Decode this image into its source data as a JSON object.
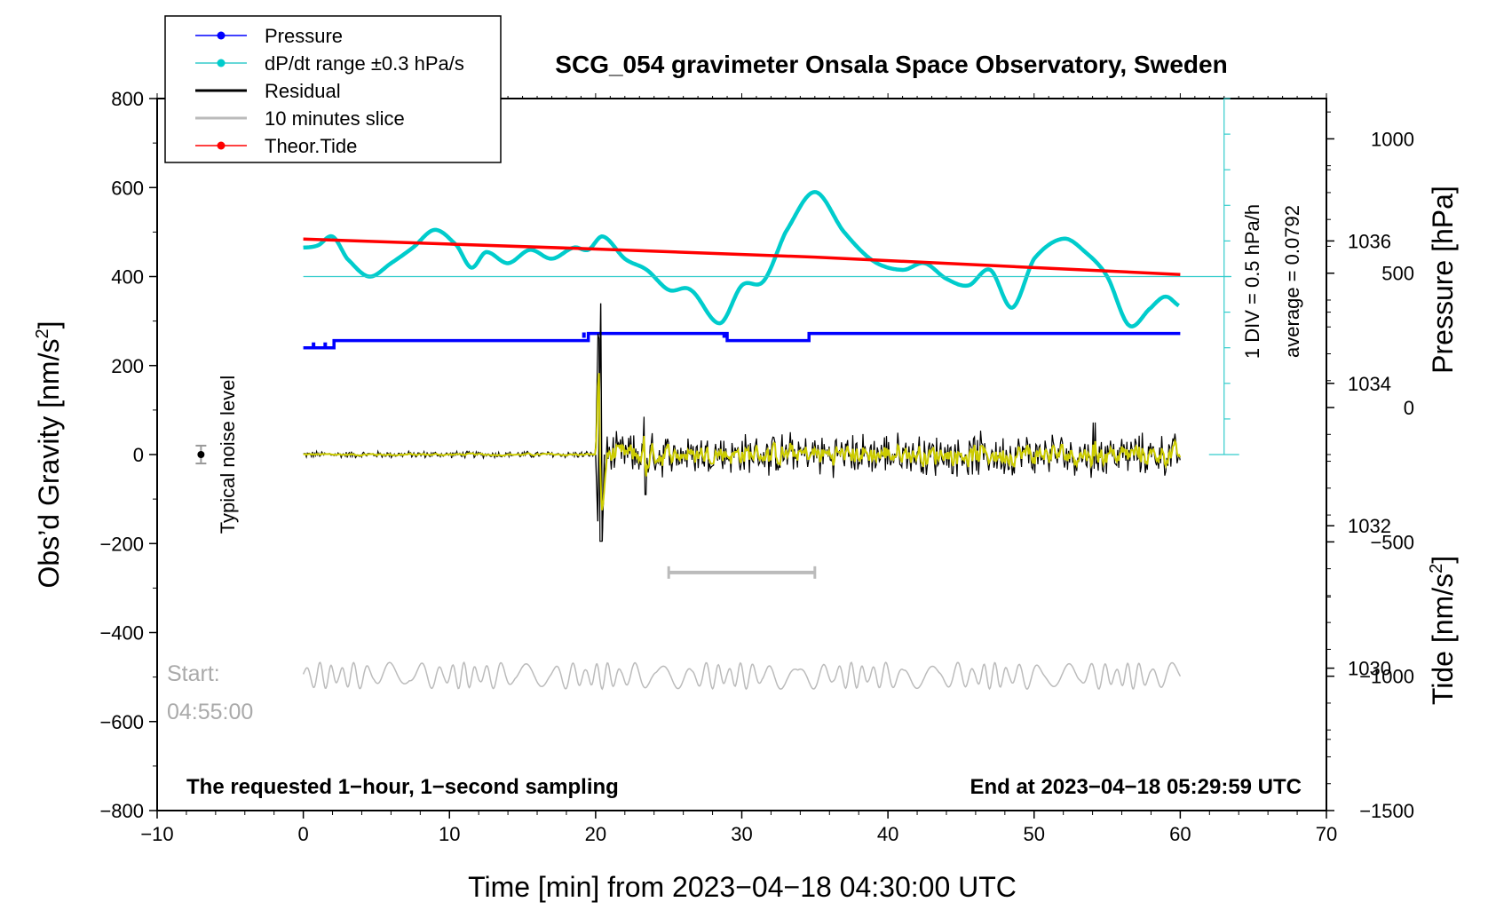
{
  "chart_data": {
    "type": "line",
    "title": "SCG_054 gravimeter Onsala Space Observatory, Sweden",
    "xlabel": "Time [min] from 2023−04−18 04:30:00 UTC",
    "ylabel_left": "Obs’d Gravity [nm/s",
    "ylabel_left_sup": "2",
    "ylabel_left_end": "]",
    "ylabel_pressure": "Pressure [hPa]",
    "ylabel_tide": "Tide [nm/s",
    "ylabel_tide_sup": "2",
    "ylabel_tide_end": "]",
    "xlim": [
      -10,
      70
    ],
    "ylim_left": [
      -800,
      800
    ],
    "x_ticks": [
      -10,
      0,
      10,
      20,
      30,
      40,
      50,
      60,
      70
    ],
    "x_tick_labels": [
      "−10",
      "0",
      "10",
      "20",
      "30",
      "40",
      "50",
      "60",
      "70"
    ],
    "y_left_ticks": [
      800,
      600,
      400,
      200,
      0,
      -200,
      -400,
      -600,
      -800
    ],
    "y_left_tick_labels": [
      "800",
      "600",
      "400",
      "200",
      "0",
      "−200",
      "−400",
      "−600",
      "−800"
    ],
    "pressure_axis": {
      "range": [
        1028,
        1038
      ],
      "ticks": [
        1030,
        1032,
        1034,
        1036
      ],
      "tick_labels": [
        "1030",
        "1032",
        "1034",
        "1036"
      ]
    },
    "tide_axis": {
      "range": [
        -1500,
        1150
      ],
      "ticks": [
        1000,
        500,
        0,
        -500,
        -1000,
        -1500
      ],
      "tick_labels": [
        "1000",
        "500",
        "0",
        "−500",
        "−1000",
        "−1500"
      ]
    },
    "legend": {
      "position": "top-left",
      "entries": [
        {
          "label": "Pressure",
          "color": "#0000ff"
        },
        {
          "label": "dP/dt range ±0.3 hPa/s",
          "color": "#00cccc"
        },
        {
          "label": "Residual",
          "color": "#000000"
        },
        {
          "label": "10 minutes slice",
          "color": "#bbbbbb"
        },
        {
          "label": "Theor.Tide",
          "color": "#ff0000"
        }
      ]
    },
    "series": [
      {
        "name": "Pressure",
        "color": "#0000ff",
        "unit": "hPa",
        "x": [
          0,
          2,
          2.1,
          19,
          19.5,
          28.5,
          29,
          34.5,
          34.6,
          60
        ],
        "values": [
          1034.5,
          1034.5,
          1034.6,
          1034.6,
          1034.7,
          1034.7,
          1034.6,
          1034.6,
          1034.7,
          1034.7
        ]
      },
      {
        "name": "dP/dt",
        "color": "#00cccc",
        "unit": "nm/s2-plot-units",
        "x": [
          0,
          1,
          2,
          3,
          4.5,
          6,
          7.5,
          9,
          10.5,
          11.5,
          12.5,
          14,
          15.5,
          17,
          18.5,
          19.5,
          20.5,
          22,
          23.5,
          25,
          26.5,
          28.5,
          30,
          31.5,
          33,
          35,
          37,
          39,
          41,
          42.5,
          44,
          45.5,
          47,
          48.5,
          50,
          52,
          53.5,
          55,
          56.5,
          58,
          59,
          60
        ],
        "values": [
          465,
          470,
          490,
          440,
          400,
          430,
          465,
          505,
          470,
          420,
          455,
          430,
          460,
          440,
          465,
          460,
          490,
          440,
          415,
          370,
          370,
          295,
          380,
          390,
          500,
          590,
          500,
          435,
          415,
          430,
          395,
          380,
          415,
          330,
          440,
          485,
          455,
          400,
          290,
          330,
          355,
          333
        ]
      },
      {
        "name": "Residual",
        "color": "#000000",
        "x": [
          0,
          20,
          20.2,
          20.4,
          20.7,
          60
        ],
        "values": [
          0,
          0,
          340,
          -195,
          0,
          0
        ],
        "noise_amplitude_before_20min": 8,
        "noise_amplitude_after_20min": 50
      },
      {
        "name": "Residual (filtered)",
        "color": "#cccc00",
        "x": [
          0,
          60
        ],
        "values": [
          0,
          0
        ]
      },
      {
        "name": "Theor.Tide",
        "color": "#ff0000",
        "unit": "nm/s2 (tide axis)",
        "x": [
          0,
          20,
          35,
          60
        ],
        "values": [
          627,
          590,
          560,
          495
        ]
      },
      {
        "name": "10 minutes slice",
        "color": "#bbbbbb",
        "x": [
          0,
          60
        ],
        "baseline": -497,
        "amplitude": 25
      }
    ],
    "annotations": {
      "baseline_level": 400,
      "pressure_div_label": "1 DIV = 0.5 hPa/h",
      "average_label": "average = 0.0792",
      "noise_label": "Typical noise level",
      "noise_point": {
        "x": -7,
        "y": 0,
        "err": 20
      },
      "slice_bracket": {
        "x0": 25,
        "x1": 35,
        "y": -265
      },
      "start_label": "Start:",
      "start_time": "04:55:00",
      "bottom_left_note": "The requested 1−hour, 1−second sampling",
      "bottom_right_note": "End at 2023−04−18 05:29:59 UTC"
    }
  }
}
